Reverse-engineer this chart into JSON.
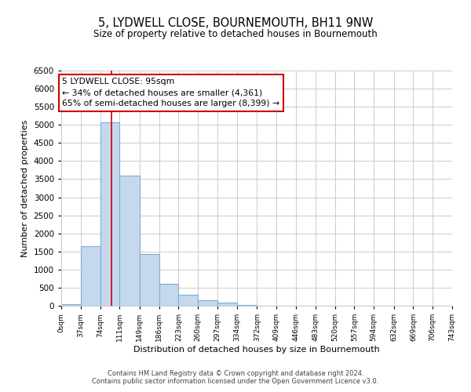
{
  "title": "5, LYDWELL CLOSE, BOURNEMOUTH, BH11 9NW",
  "subtitle": "Size of property relative to detached houses in Bournemouth",
  "bar_values": [
    50,
    1650,
    5080,
    3600,
    1420,
    610,
    300,
    150,
    80,
    30,
    0,
    0,
    0,
    0,
    0,
    0,
    0,
    0,
    0,
    0
  ],
  "bin_edges": [
    0,
    37,
    74,
    111,
    149,
    186,
    223,
    260,
    297,
    334,
    372,
    409,
    446,
    483,
    520,
    557,
    594,
    632,
    669,
    706,
    743
  ],
  "bar_color": "#c5d8ee",
  "bar_edge_color": "#7bafd4",
  "grid_color": "#cccccc",
  "vline_x": 95,
  "vline_color": "#cc0000",
  "annotation_text": "5 LYDWELL CLOSE: 95sqm\n← 34% of detached houses are smaller (4,361)\n65% of semi-detached houses are larger (8,399) →",
  "annotation_box_edge": "#cc0000",
  "xlabel": "Distribution of detached houses by size in Bournemouth",
  "ylabel": "Number of detached properties",
  "ylim": [
    0,
    6500
  ],
  "yticks": [
    0,
    500,
    1000,
    1500,
    2000,
    2500,
    3000,
    3500,
    4000,
    4500,
    5000,
    5500,
    6000,
    6500
  ],
  "xtick_labels": [
    "0sqm",
    "37sqm",
    "74sqm",
    "111sqm",
    "149sqm",
    "186sqm",
    "223sqm",
    "260sqm",
    "297sqm",
    "334sqm",
    "372sqm",
    "409sqm",
    "446sqm",
    "483sqm",
    "520sqm",
    "557sqm",
    "594sqm",
    "632sqm",
    "669sqm",
    "706sqm",
    "743sqm"
  ],
  "footer_line1": "Contains HM Land Registry data © Crown copyright and database right 2024.",
  "footer_line2": "Contains public sector information licensed under the Open Government Licence v3.0."
}
